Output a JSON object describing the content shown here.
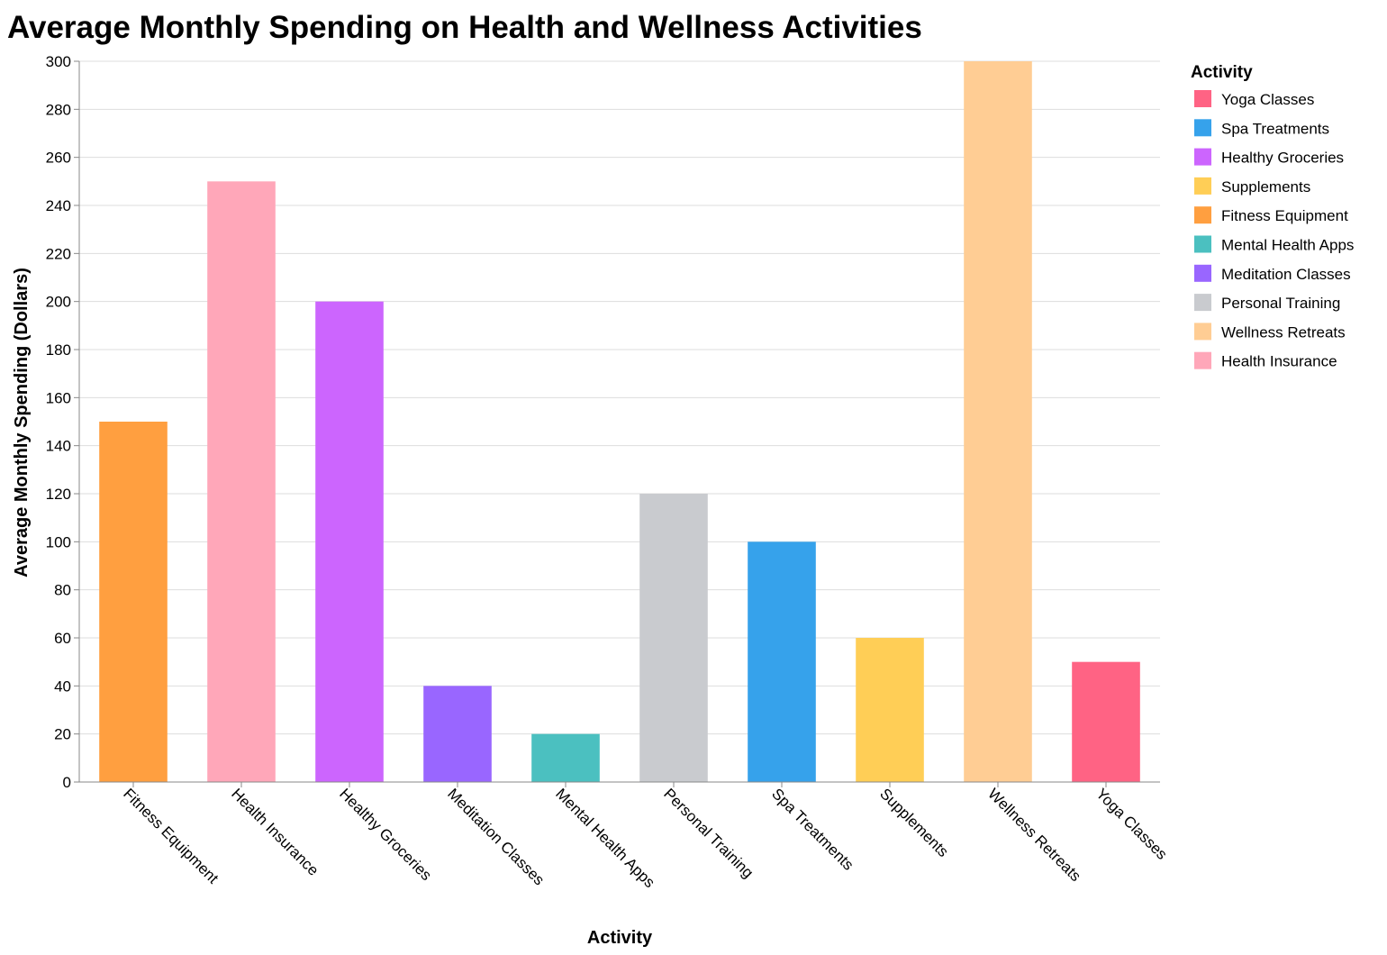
{
  "chart_data": {
    "type": "bar",
    "title": "Average Monthly Spending on Health and Wellness Activities",
    "xlabel": "Activity",
    "ylabel": "Average Monthly Spending (Dollars)",
    "ylim": [
      0,
      300
    ],
    "yticks": [
      0,
      20,
      40,
      60,
      80,
      100,
      120,
      140,
      160,
      180,
      200,
      220,
      240,
      260,
      280,
      300
    ],
    "grid": true,
    "legend_title": "Activity",
    "legend_position": "right",
    "categories": [
      "Fitness Equipment",
      "Health Insurance",
      "Healthy Groceries",
      "Meditation Classes",
      "Mental Health Apps",
      "Personal Training",
      "Spa Treatments",
      "Supplements",
      "Wellness Retreats",
      "Yoga Classes"
    ],
    "values": [
      150,
      250,
      200,
      40,
      20,
      120,
      100,
      60,
      300,
      50
    ],
    "colors": {
      "Yoga Classes": "#FF6384",
      "Spa Treatments": "#36A2EB",
      "Healthy Groceries": "#CC65FE",
      "Supplements": "#FFCE56",
      "Fitness Equipment": "#FF9F40",
      "Mental Health Apps": "#4BC0C0",
      "Meditation Classes": "#9966FF",
      "Personal Training": "#C9CBCF",
      "Wellness Retreats": "#FFCD94",
      "Health Insurance": "#FFA7B9"
    },
    "legend_order": [
      "Yoga Classes",
      "Spa Treatments",
      "Healthy Groceries",
      "Supplements",
      "Fitness Equipment",
      "Mental Health Apps",
      "Meditation Classes",
      "Personal Training",
      "Wellness Retreats",
      "Health Insurance"
    ]
  }
}
